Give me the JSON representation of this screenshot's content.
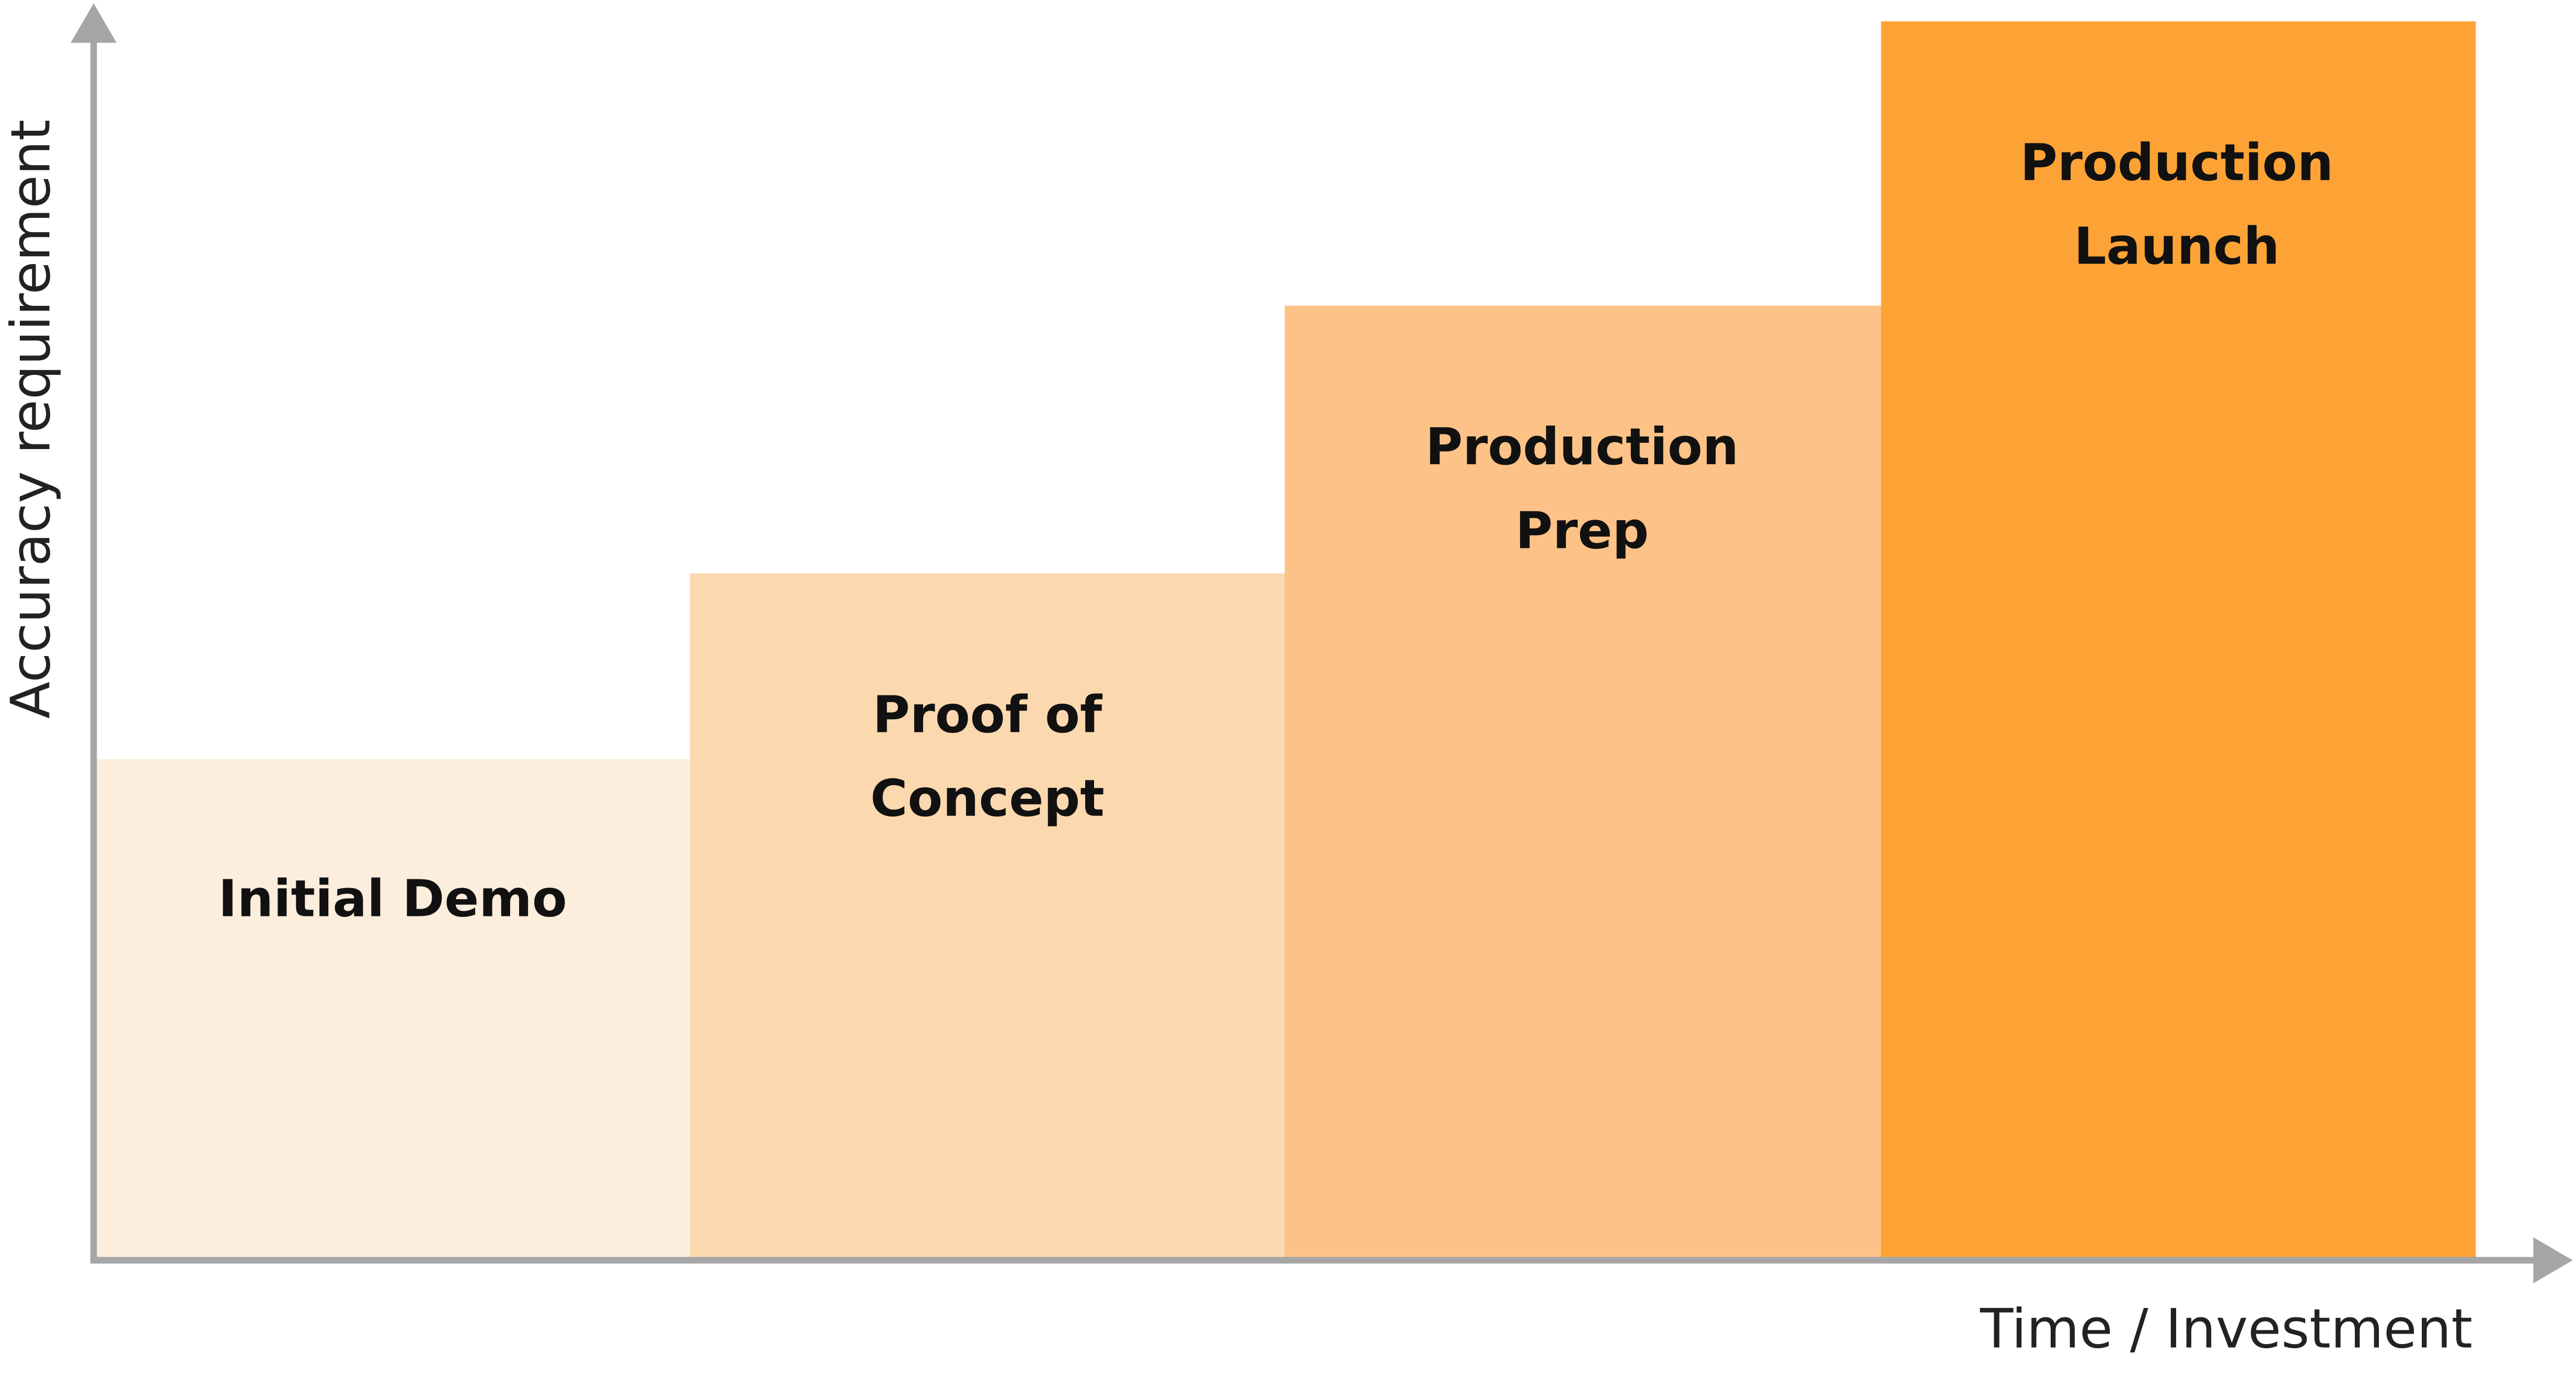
{
  "axes": {
    "y_label": "Accuracy requirement",
    "x_label": "Time / Investment"
  },
  "stages": [
    {
      "label_lines": [
        "Initial Demo"
      ]
    },
    {
      "label_lines": [
        "Proof of",
        "Concept"
      ]
    },
    {
      "label_lines": [
        "Production",
        "Prep"
      ]
    },
    {
      "label_lines": [
        "Production",
        "Launch"
      ]
    }
  ]
}
